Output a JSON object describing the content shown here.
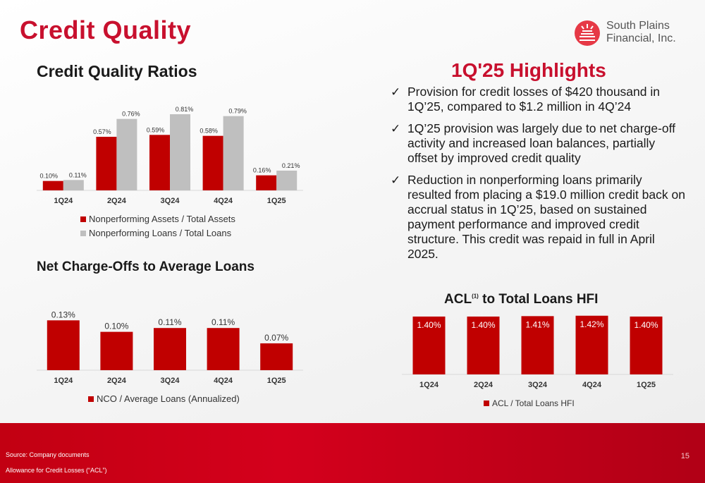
{
  "page": {
    "title": "Credit Quality",
    "page_number": "15",
    "logo_text_line1": "South Plains",
    "logo_text_line2": "Financial, Inc.",
    "source_note": "Source: Company documents",
    "acl_note": "Allowance for Credit Losses (“ACL”)"
  },
  "highlights": {
    "title": "1Q'25 Highlights",
    "bullets": [
      "Provision for credit losses of $420 thousand in 1Q’25, compared to $1.2 million in 4Q’24",
      "1Q’25 provision was largely due to net charge-off activity and increased loan balances, partially offset by improved credit quality",
      "Reduction in nonperforming loans primarily resulted from placing a $19.0 million credit back on accrual status in 1Q’25, based on sustained payment performance and improved credit structure. This credit was repaid in full in April 2025."
    ],
    "check_icon": "checkmark-icon"
  },
  "colors": {
    "red": "#c00000",
    "gray": "#bfbfbf",
    "accent": "#c8102e"
  },
  "chart_data": [
    {
      "id": "credit-quality-ratios",
      "type": "bar",
      "title": "Credit Quality Ratios",
      "categories": [
        "1Q24",
        "2Q24",
        "3Q24",
        "4Q24",
        "1Q25"
      ],
      "series": [
        {
          "name": "Nonperforming Assets / Total Assets",
          "values": [
            0.1,
            0.57,
            0.59,
            0.58,
            0.16
          ],
          "labels": [
            "0.10%",
            "0.57%",
            "0.59%",
            "0.58%",
            "0.16%"
          ],
          "color": "#c00000"
        },
        {
          "name": "Nonperforming Loans / Total Loans",
          "values": [
            0.11,
            0.76,
            0.81,
            0.79,
            0.21
          ],
          "labels": [
            "0.11%",
            "0.76%",
            "0.81%",
            "0.79%",
            "0.21%"
          ],
          "color": "#bfbfbf"
        }
      ],
      "ylim": [
        0,
        0.9
      ],
      "legend": "bottom"
    },
    {
      "id": "nco-average-loans",
      "type": "bar",
      "title": "Net Charge-Offs to Average Loans",
      "categories": [
        "1Q24",
        "2Q24",
        "3Q24",
        "4Q24",
        "1Q25"
      ],
      "series": [
        {
          "name": "NCO / Average Loans (Annualized)",
          "values": [
            0.13,
            0.1,
            0.11,
            0.11,
            0.07
          ],
          "labels": [
            "0.13%",
            "0.10%",
            "0.11%",
            "0.11%",
            "0.07%"
          ],
          "color": "#c00000"
        }
      ],
      "ylim": [
        0,
        0.16
      ],
      "legend": "bottom"
    },
    {
      "id": "acl-total-loans",
      "type": "bar",
      "title": "ACL",
      "title_superscript": "(1)",
      "title_suffix": "to Total Loans HFI",
      "categories": [
        "1Q24",
        "2Q24",
        "3Q24",
        "4Q24",
        "1Q25"
      ],
      "series": [
        {
          "name": "ACL / Total Loans HFI",
          "values": [
            1.4,
            1.4,
            1.41,
            1.42,
            1.4
          ],
          "labels": [
            "1.40%",
            "1.40%",
            "1.41%",
            "1.42%",
            "1.40%"
          ],
          "color": "#c00000"
        }
      ],
      "ylim": [
        0,
        1.45
      ],
      "legend": "bottom"
    }
  ]
}
